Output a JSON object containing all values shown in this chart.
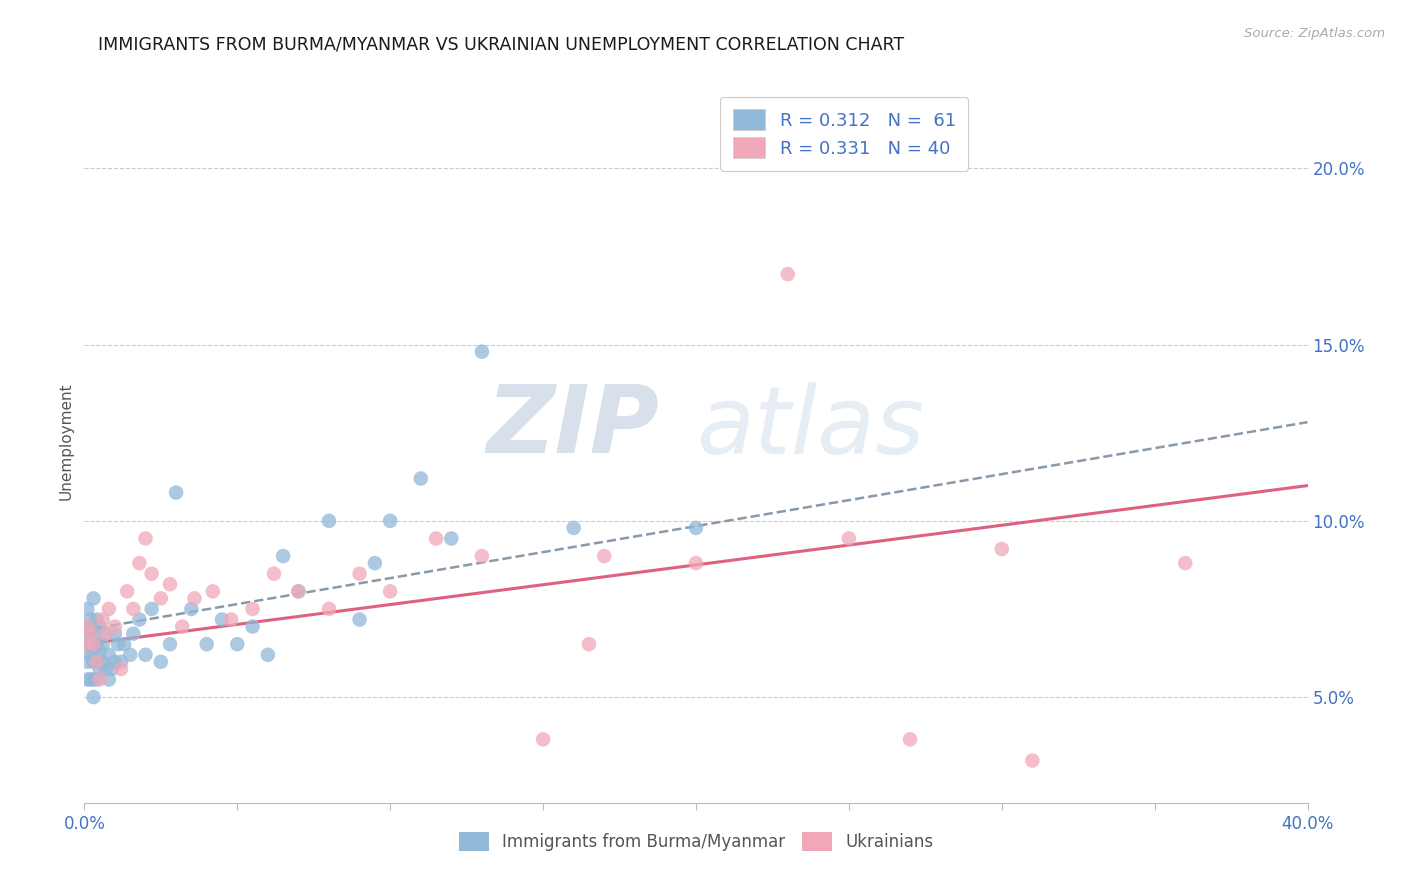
{
  "title": "IMMIGRANTS FROM BURMA/MYANMAR VS UKRAINIAN UNEMPLOYMENT CORRELATION CHART",
  "source_text": "Source: ZipAtlas.com",
  "ylabel": "Unemployment",
  "xlim": [
    0.0,
    0.4
  ],
  "ylim": [
    0.02,
    0.225
  ],
  "xticks": [
    0.0,
    0.05,
    0.1,
    0.15,
    0.2,
    0.25,
    0.3,
    0.35,
    0.4
  ],
  "xticklabels": [
    "0.0%",
    "",
    "",
    "",
    "",
    "",
    "",
    "",
    "40.0%"
  ],
  "yticks": [
    0.05,
    0.1,
    0.15,
    0.2
  ],
  "yticklabels": [
    "5.0%",
    "10.0%",
    "15.0%",
    "20.0%"
  ],
  "legend_r1": "R = 0.312",
  "legend_n1": "N =  61",
  "legend_r2": "R = 0.331",
  "legend_n2": "N = 40",
  "title_color": "#1a1a1a",
  "axis_color": "#4472c4",
  "blue_color": "#92b8d8",
  "pink_color": "#f0a8b8",
  "trend_blue_color": "#8899aa",
  "trend_pink_color": "#e06080",
  "watermark_color": "#ccd5e8",
  "blue_scatter_x": [
    0.001,
    0.001,
    0.001,
    0.001,
    0.001,
    0.001,
    0.002,
    0.002,
    0.002,
    0.002,
    0.002,
    0.003,
    0.003,
    0.003,
    0.003,
    0.003,
    0.003,
    0.004,
    0.004,
    0.004,
    0.004,
    0.005,
    0.005,
    0.005,
    0.006,
    0.006,
    0.007,
    0.007,
    0.008,
    0.008,
    0.009,
    0.01,
    0.01,
    0.011,
    0.012,
    0.013,
    0.015,
    0.016,
    0.018,
    0.02,
    0.022,
    0.025,
    0.028,
    0.03,
    0.035,
    0.04,
    0.045,
    0.05,
    0.055,
    0.06,
    0.065,
    0.07,
    0.08,
    0.09,
    0.095,
    0.1,
    0.11,
    0.12,
    0.13,
    0.16,
    0.2
  ],
  "blue_scatter_y": [
    0.055,
    0.06,
    0.065,
    0.068,
    0.07,
    0.075,
    0.055,
    0.062,
    0.065,
    0.068,
    0.072,
    0.05,
    0.055,
    0.06,
    0.063,
    0.068,
    0.078,
    0.055,
    0.06,
    0.065,
    0.072,
    0.058,
    0.063,
    0.07,
    0.06,
    0.065,
    0.058,
    0.068,
    0.055,
    0.062,
    0.058,
    0.06,
    0.068,
    0.065,
    0.06,
    0.065,
    0.062,
    0.068,
    0.072,
    0.062,
    0.075,
    0.06,
    0.065,
    0.108,
    0.075,
    0.065,
    0.072,
    0.065,
    0.07,
    0.062,
    0.09,
    0.08,
    0.1,
    0.072,
    0.088,
    0.1,
    0.112,
    0.095,
    0.148,
    0.098,
    0.098
  ],
  "pink_scatter_x": [
    0.001,
    0.001,
    0.002,
    0.003,
    0.004,
    0.005,
    0.006,
    0.007,
    0.008,
    0.01,
    0.012,
    0.014,
    0.016,
    0.018,
    0.02,
    0.022,
    0.025,
    0.028,
    0.032,
    0.036,
    0.042,
    0.048,
    0.055,
    0.062,
    0.07,
    0.08,
    0.09,
    0.1,
    0.115,
    0.13,
    0.15,
    0.165,
    0.2,
    0.23,
    0.27,
    0.31,
    0.17,
    0.25,
    0.3,
    0.36
  ],
  "pink_scatter_y": [
    0.065,
    0.07,
    0.068,
    0.065,
    0.06,
    0.055,
    0.072,
    0.068,
    0.075,
    0.07,
    0.058,
    0.08,
    0.075,
    0.088,
    0.095,
    0.085,
    0.078,
    0.082,
    0.07,
    0.078,
    0.08,
    0.072,
    0.075,
    0.085,
    0.08,
    0.075,
    0.085,
    0.08,
    0.095,
    0.09,
    0.038,
    0.065,
    0.088,
    0.17,
    0.038,
    0.032,
    0.09,
    0.095,
    0.092,
    0.088
  ],
  "blue_trend_x": [
    0.0,
    0.4
  ],
  "blue_trend_y": [
    0.069,
    0.128
  ],
  "pink_trend_x": [
    0.0,
    0.4
  ],
  "pink_trend_y": [
    0.065,
    0.11
  ]
}
